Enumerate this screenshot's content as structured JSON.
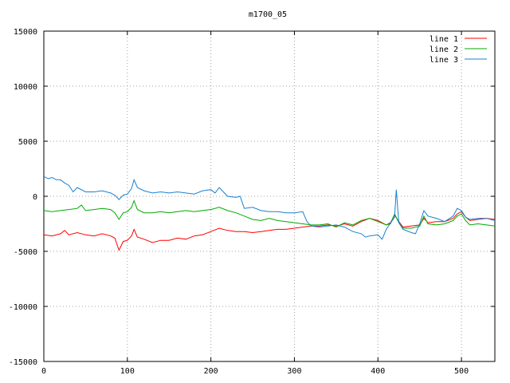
{
  "chart_data": {
    "type": "line",
    "title": "m1700_05",
    "xlabel": "",
    "ylabel": "",
    "xlim": [
      0,
      540
    ],
    "ylim": [
      -15000,
      15000
    ],
    "xticks": [
      0,
      100,
      200,
      300,
      400,
      500
    ],
    "yticks": [
      -15000,
      -10000,
      -5000,
      0,
      5000,
      10000,
      15000
    ],
    "grid": true,
    "legend_position": "top-right",
    "series": [
      {
        "name": "line 1",
        "color": "#ff0000",
        "points": [
          [
            0,
            -3500
          ],
          [
            10,
            -3600
          ],
          [
            20,
            -3400
          ],
          [
            25,
            -3100
          ],
          [
            30,
            -3500
          ],
          [
            40,
            -3300
          ],
          [
            50,
            -3500
          ],
          [
            60,
            -3600
          ],
          [
            70,
            -3400
          ],
          [
            80,
            -3600
          ],
          [
            85,
            -3800
          ],
          [
            90,
            -4900
          ],
          [
            95,
            -4100
          ],
          [
            100,
            -4000
          ],
          [
            105,
            -3600
          ],
          [
            108,
            -3000
          ],
          [
            112,
            -3700
          ],
          [
            120,
            -3900
          ],
          [
            130,
            -4200
          ],
          [
            140,
            -4000
          ],
          [
            150,
            -4000
          ],
          [
            160,
            -3800
          ],
          [
            170,
            -3900
          ],
          [
            180,
            -3600
          ],
          [
            190,
            -3500
          ],
          [
            200,
            -3200
          ],
          [
            210,
            -2900
          ],
          [
            220,
            -3100
          ],
          [
            230,
            -3200
          ],
          [
            240,
            -3200
          ],
          [
            250,
            -3300
          ],
          [
            260,
            -3200
          ],
          [
            270,
            -3100
          ],
          [
            280,
            -3000
          ],
          [
            290,
            -3000
          ],
          [
            300,
            -2900
          ],
          [
            310,
            -2800
          ],
          [
            320,
            -2700
          ],
          [
            330,
            -2700
          ],
          [
            340,
            -2600
          ],
          [
            350,
            -2700
          ],
          [
            360,
            -2500
          ],
          [
            370,
            -2700
          ],
          [
            380,
            -2300
          ],
          [
            390,
            -2000
          ],
          [
            400,
            -2200
          ],
          [
            410,
            -2600
          ],
          [
            415,
            -2400
          ],
          [
            420,
            -1700
          ],
          [
            425,
            -2300
          ],
          [
            430,
            -2800
          ],
          [
            440,
            -2700
          ],
          [
            450,
            -2600
          ],
          [
            455,
            -2000
          ],
          [
            460,
            -2400
          ],
          [
            470,
            -2300
          ],
          [
            480,
            -2300
          ],
          [
            490,
            -2000
          ],
          [
            495,
            -1600
          ],
          [
            500,
            -1400
          ],
          [
            505,
            -1900
          ],
          [
            510,
            -2200
          ],
          [
            520,
            -2100
          ],
          [
            530,
            -2000
          ],
          [
            540,
            -2100
          ]
        ]
      },
      {
        "name": "line 2",
        "color": "#00aa00",
        "points": [
          [
            0,
            -1300
          ],
          [
            10,
            -1400
          ],
          [
            20,
            -1300
          ],
          [
            30,
            -1200
          ],
          [
            40,
            -1100
          ],
          [
            45,
            -800
          ],
          [
            50,
            -1300
          ],
          [
            60,
            -1200
          ],
          [
            70,
            -1100
          ],
          [
            80,
            -1200
          ],
          [
            85,
            -1500
          ],
          [
            90,
            -2100
          ],
          [
            95,
            -1500
          ],
          [
            100,
            -1400
          ],
          [
            105,
            -1000
          ],
          [
            108,
            -400
          ],
          [
            112,
            -1200
          ],
          [
            120,
            -1500
          ],
          [
            130,
            -1500
          ],
          [
            140,
            -1400
          ],
          [
            150,
            -1500
          ],
          [
            160,
            -1400
          ],
          [
            170,
            -1300
          ],
          [
            180,
            -1400
          ],
          [
            190,
            -1300
          ],
          [
            200,
            -1200
          ],
          [
            210,
            -1000
          ],
          [
            220,
            -1300
          ],
          [
            230,
            -1500
          ],
          [
            240,
            -1800
          ],
          [
            250,
            -2100
          ],
          [
            260,
            -2200
          ],
          [
            270,
            -2000
          ],
          [
            280,
            -2200
          ],
          [
            290,
            -2300
          ],
          [
            300,
            -2400
          ],
          [
            310,
            -2500
          ],
          [
            320,
            -2600
          ],
          [
            330,
            -2600
          ],
          [
            340,
            -2500
          ],
          [
            350,
            -2800
          ],
          [
            360,
            -2400
          ],
          [
            370,
            -2600
          ],
          [
            380,
            -2200
          ],
          [
            390,
            -2000
          ],
          [
            400,
            -2300
          ],
          [
            410,
            -2600
          ],
          [
            415,
            -2500
          ],
          [
            420,
            -1600
          ],
          [
            425,
            -2400
          ],
          [
            430,
            -2900
          ],
          [
            440,
            -2900
          ],
          [
            450,
            -2700
          ],
          [
            455,
            -1800
          ],
          [
            460,
            -2500
          ],
          [
            470,
            -2600
          ],
          [
            480,
            -2500
          ],
          [
            490,
            -2200
          ],
          [
            495,
            -1800
          ],
          [
            500,
            -1600
          ],
          [
            505,
            -2200
          ],
          [
            510,
            -2600
          ],
          [
            520,
            -2500
          ],
          [
            530,
            -2600
          ],
          [
            540,
            -2700
          ]
        ]
      },
      {
        "name": "line 3",
        "color": "#1a80d0",
        "points": [
          [
            0,
            1800
          ],
          [
            5,
            1600
          ],
          [
            10,
            1700
          ],
          [
            15,
            1500
          ],
          [
            20,
            1500
          ],
          [
            25,
            1200
          ],
          [
            30,
            1000
          ],
          [
            35,
            400
          ],
          [
            40,
            800
          ],
          [
            50,
            400
          ],
          [
            60,
            400
          ],
          [
            70,
            500
          ],
          [
            80,
            300
          ],
          [
            85,
            100
          ],
          [
            90,
            -300
          ],
          [
            95,
            100
          ],
          [
            100,
            200
          ],
          [
            105,
            700
          ],
          [
            108,
            1500
          ],
          [
            112,
            800
          ],
          [
            120,
            500
          ],
          [
            130,
            300
          ],
          [
            140,
            400
          ],
          [
            150,
            300
          ],
          [
            160,
            400
          ],
          [
            170,
            300
          ],
          [
            180,
            200
          ],
          [
            190,
            500
          ],
          [
            200,
            600
          ],
          [
            205,
            300
          ],
          [
            210,
            800
          ],
          [
            220,
            0
          ],
          [
            230,
            -100
          ],
          [
            235,
            0
          ],
          [
            240,
            -1100
          ],
          [
            250,
            -1000
          ],
          [
            260,
            -1300
          ],
          [
            270,
            -1400
          ],
          [
            280,
            -1400
          ],
          [
            290,
            -1500
          ],
          [
            300,
            -1500
          ],
          [
            310,
            -1400
          ],
          [
            315,
            -2300
          ],
          [
            320,
            -2700
          ],
          [
            330,
            -2800
          ],
          [
            340,
            -2700
          ],
          [
            350,
            -2600
          ],
          [
            360,
            -2800
          ],
          [
            370,
            -3200
          ],
          [
            380,
            -3400
          ],
          [
            385,
            -3700
          ],
          [
            390,
            -3600
          ],
          [
            400,
            -3500
          ],
          [
            405,
            -3900
          ],
          [
            410,
            -3000
          ],
          [
            420,
            -1900
          ],
          [
            422,
            600
          ],
          [
            425,
            -2400
          ],
          [
            430,
            -3000
          ],
          [
            440,
            -3300
          ],
          [
            445,
            -3400
          ],
          [
            450,
            -2500
          ],
          [
            455,
            -1300
          ],
          [
            460,
            -1800
          ],
          [
            470,
            -2000
          ],
          [
            480,
            -2300
          ],
          [
            490,
            -1800
          ],
          [
            495,
            -1100
          ],
          [
            500,
            -1300
          ],
          [
            505,
            -1900
          ],
          [
            510,
            -2100
          ],
          [
            520,
            -2000
          ],
          [
            530,
            -2000
          ],
          [
            540,
            -2200
          ]
        ]
      }
    ]
  }
}
